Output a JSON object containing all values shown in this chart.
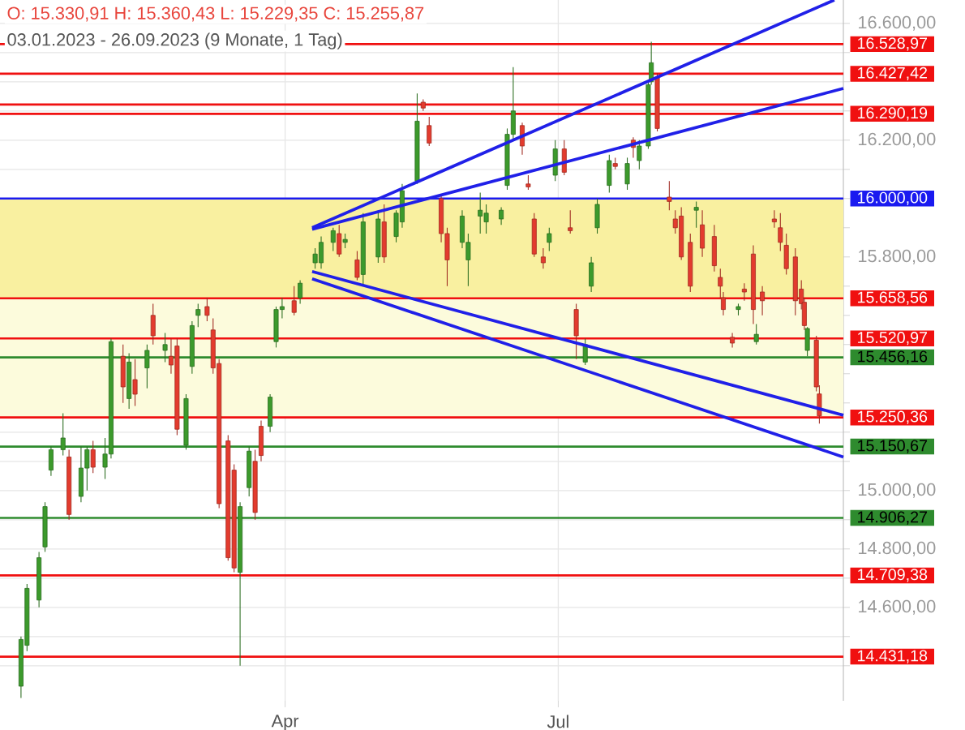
{
  "chart_data": {
    "type": "candlestick",
    "title": "O: 15.330,91  H: 15.360,43  L: 15.229,35  C: 15.255,87",
    "subtitle": "03.01.2023 - 26.09.2023  (9 Monate, 1 Tag)",
    "x": [
      "2023-01-03",
      "2023-01-05",
      "2023-01-09",
      "2023-01-11",
      "2023-01-13",
      "2023-01-17",
      "2023-01-19",
      "2023-01-23",
      "2023-01-25",
      "2023-01-27",
      "2023-01-31",
      "2023-02-02",
      "2023-02-06",
      "2023-02-08",
      "2023-02-10",
      "2023-02-14",
      "2023-02-16",
      "2023-02-20",
      "2023-02-22",
      "2023-02-24",
      "2023-02-27",
      "2023-03-01",
      "2023-03-03",
      "2023-03-06",
      "2023-03-08",
      "2023-03-10",
      "2023-03-13",
      "2023-03-15",
      "2023-03-17",
      "2023-03-20",
      "2023-03-22",
      "2023-03-24",
      "2023-03-27",
      "2023-03-29",
      "2023-03-31",
      "2023-04-04",
      "2023-04-06",
      "2023-04-11",
      "2023-04-13",
      "2023-04-17",
      "2023-04-19",
      "2023-04-21",
      "2023-04-25",
      "2023-04-27",
      "2023-05-02",
      "2023-05-04",
      "2023-05-08",
      "2023-05-10",
      "2023-05-15",
      "2023-05-17",
      "2023-05-19",
      "2023-05-23",
      "2023-05-25",
      "2023-05-30",
      "2023-06-01",
      "2023-06-05",
      "2023-06-07",
      "2023-06-12",
      "2023-06-14",
      "2023-06-16",
      "2023-06-19",
      "2023-06-21",
      "2023-06-23",
      "2023-06-26",
      "2023-06-28",
      "2023-06-30",
      "2023-07-03",
      "2023-07-05",
      "2023-07-07",
      "2023-07-10",
      "2023-07-12",
      "2023-07-14",
      "2023-07-18",
      "2023-07-20",
      "2023-07-24",
      "2023-07-26",
      "2023-07-28",
      "2023-07-31",
      "2023-08-01",
      "2023-08-03",
      "2023-08-07",
      "2023-08-09",
      "2023-08-11",
      "2023-08-14",
      "2023-08-16",
      "2023-08-18",
      "2023-08-22",
      "2023-08-24",
      "2023-08-25",
      "2023-08-28",
      "2023-08-30",
      "2023-09-01",
      "2023-09-04",
      "2023-09-05",
      "2023-09-07",
      "2023-09-11",
      "2023-09-13",
      "2023-09-15",
      "2023-09-18",
      "2023-09-20",
      "2023-09-21",
      "2023-09-22",
      "2023-09-25",
      "2023-09-26"
    ],
    "ohlc": [
      [
        14330,
        14500,
        14290,
        14490
      ],
      [
        14470,
        14680,
        14450,
        14665
      ],
      [
        14625,
        14790,
        14600,
        14770
      ],
      [
        14807,
        14960,
        14790,
        14945
      ],
      [
        15070,
        15150,
        15050,
        15140
      ],
      [
        15140,
        15265,
        15120,
        15180
      ],
      [
        15115,
        15140,
        14900,
        14918
      ],
      [
        14980,
        15150,
        14960,
        15077
      ],
      [
        15077,
        15150,
        15000,
        15140
      ],
      [
        15140,
        15170,
        15060,
        15080
      ],
      [
        15080,
        15180,
        15040,
        15125
      ],
      [
        15125,
        15520,
        15110,
        15510
      ],
      [
        15460,
        15500,
        15300,
        15355
      ],
      [
        15315,
        15470,
        15280,
        15440
      ],
      [
        15380,
        15450,
        15290,
        15330
      ],
      [
        15420,
        15500,
        15350,
        15480
      ],
      [
        15600,
        15640,
        15500,
        15530
      ],
      [
        15480,
        15540,
        15440,
        15500
      ],
      [
        15460,
        15520,
        15400,
        15430
      ],
      [
        15495,
        15520,
        15190,
        15210
      ],
      [
        15155,
        15330,
        15140,
        15315
      ],
      [
        15425,
        15580,
        15400,
        15565
      ],
      [
        15600,
        15640,
        15560,
        15620
      ],
      [
        15630,
        15660,
        15580,
        15600
      ],
      [
        15550,
        15590,
        15400,
        15420
      ],
      [
        15435,
        15450,
        14940,
        14955
      ],
      [
        15170,
        15190,
        14760,
        14770
      ],
      [
        15070,
        15090,
        14720,
        14735
      ],
      [
        14720,
        14960,
        14400,
        14945
      ],
      [
        15010,
        15150,
        14980,
        15135
      ],
      [
        15100,
        15140,
        14900,
        14925
      ],
      [
        15220,
        15240,
        15100,
        15120
      ],
      [
        15220,
        15330,
        15200,
        15320
      ],
      [
        15510,
        15630,
        15490,
        15620
      ],
      [
        15620,
        15660,
        15590,
        15630
      ],
      [
        15650,
        15700,
        15600,
        15610
      ],
      [
        15660,
        15720,
        15640,
        15710
      ],
      [
        15780,
        15830,
        15760,
        15810
      ],
      [
        15780,
        15870,
        15760,
        15850
      ],
      [
        15850,
        15900,
        15820,
        15890
      ],
      [
        15880,
        15910,
        15800,
        15810
      ],
      [
        15850,
        15880,
        15830,
        15860
      ],
      [
        15790,
        15820,
        15720,
        15730
      ],
      [
        15740,
        15950,
        15700,
        15920
      ],
      [
        15800,
        15960,
        15780,
        15930
      ],
      [
        15920,
        15980,
        15780,
        15800
      ],
      [
        15870,
        15960,
        15850,
        15950
      ],
      [
        15920,
        16050,
        15900,
        16027
      ],
      [
        16060,
        16360,
        16050,
        16265
      ],
      [
        16330,
        16340,
        16300,
        16310
      ],
      [
        16250,
        16280,
        16180,
        16190
      ],
      [
        16000,
        16010,
        15850,
        15880
      ],
      [
        15880,
        15900,
        15700,
        15790
      ],
      [
        15850,
        15960,
        15830,
        15940
      ],
      [
        15790,
        15880,
        15700,
        15850
      ],
      [
        15940,
        16020,
        15880,
        15960
      ],
      [
        15920,
        15980,
        15880,
        15950
      ],
      [
        15930,
        15970,
        15910,
        15960
      ],
      [
        16045,
        16240,
        16030,
        16220
      ],
      [
        16220,
        16450,
        16200,
        16300
      ],
      [
        16250,
        16260,
        16150,
        16180
      ],
      [
        16050,
        16080,
        16030,
        16040
      ],
      [
        15930,
        15950,
        15800,
        15810
      ],
      [
        15800,
        15830,
        15760,
        15780
      ],
      [
        15850,
        15900,
        15820,
        15880
      ],
      [
        16080,
        16200,
        16060,
        16170
      ],
      [
        16170,
        16200,
        16080,
        16090
      ],
      [
        15900,
        15960,
        15880,
        15890
      ],
      [
        15620,
        15640,
        15450,
        15530
      ],
      [
        15440,
        15520,
        15430,
        15500
      ],
      [
        15700,
        15800,
        15680,
        15780
      ],
      [
        15900,
        16000,
        15880,
        15980
      ],
      [
        16045,
        16150,
        16020,
        16130
      ],
      [
        16120,
        16140,
        16100,
        16110
      ],
      [
        16050,
        16140,
        16030,
        16120
      ],
      [
        16200,
        16210,
        16140,
        16175
      ],
      [
        16130,
        16200,
        16100,
        16180
      ],
      [
        16180,
        16400,
        16170,
        16390
      ],
      [
        16400,
        16537,
        16390,
        16465
      ],
      [
        16415,
        16430,
        16230,
        16240
      ],
      [
        16005,
        16060,
        15960,
        15990
      ],
      [
        15930,
        15960,
        15880,
        15900
      ],
      [
        15940,
        15970,
        15790,
        15800
      ],
      [
        15850,
        15880,
        15680,
        15700
      ],
      [
        15960,
        15990,
        15900,
        15970
      ],
      [
        15910,
        15960,
        15800,
        15830
      ],
      [
        15870,
        15910,
        15750,
        15770
      ],
      [
        15730,
        15760,
        15660,
        15700
      ],
      [
        15660,
        15680,
        15600,
        15620
      ],
      [
        15525,
        15540,
        15490,
        15505
      ],
      [
        15620,
        15640,
        15600,
        15630
      ],
      [
        15690,
        15710,
        15650,
        15680
      ],
      [
        15810,
        15840,
        15570,
        15620
      ],
      [
        15510,
        15570,
        15500,
        15535
      ],
      [
        15680,
        15700,
        15600,
        15650
      ],
      [
        15930,
        15960,
        15900,
        15920
      ],
      [
        15900,
        15950,
        15820,
        15850
      ],
      [
        15840,
        15880,
        15740,
        15760
      ],
      [
        15800,
        15830,
        15600,
        15650
      ],
      [
        15690,
        15720,
        15620,
        15640
      ],
      [
        15645,
        15660,
        15550,
        15565
      ],
      [
        15480,
        15560,
        15460,
        15555
      ],
      [
        15515,
        15530,
        15340,
        15355
      ],
      [
        15330.91,
        15360.43,
        15229.35,
        15255.87
      ]
    ],
    "colors": [
      "#3c9a2c",
      "#3c9a2c",
      "#3c9a2c",
      "#3c9a2c",
      "#3c9a2c",
      "#3c9a2c",
      "#e33b2e",
      "#3c9a2c",
      "#3c9a2c",
      "#e33b2e",
      "#3c9a2c",
      "#3c9a2c",
      "#e33b2e",
      "#3c9a2c",
      "#e33b2e",
      "#3c9a2c",
      "#e33b2e",
      "#3c9a2c",
      "#e33b2e",
      "#e33b2e",
      "#3c9a2c",
      "#3c9a2c",
      "#3c9a2c",
      "#e33b2e",
      "#e33b2e",
      "#e33b2e",
      "#e33b2e",
      "#e33b2e",
      "#3c9a2c",
      "#3c9a2c",
      "#e33b2e",
      "#e33b2e",
      "#3c9a2c",
      "#3c9a2c",
      "#3c9a2c",
      "#e33b2e",
      "#3c9a2c",
      "#3c9a2c",
      "#3c9a2c",
      "#3c9a2c",
      "#e33b2e",
      "#3c9a2c",
      "#e33b2e",
      "#3c9a2c",
      "#3c9a2c",
      "#e33b2e",
      "#3c9a2c",
      "#3c9a2c",
      "#3c9a2c",
      "#e33b2e",
      "#e33b2e",
      "#e33b2e",
      "#e33b2e",
      "#3c9a2c",
      "#3c9a2c",
      "#3c9a2c",
      "#3c9a2c",
      "#3c9a2c",
      "#3c9a2c",
      "#3c9a2c",
      "#e33b2e",
      "#e33b2e",
      "#e33b2e",
      "#e33b2e",
      "#3c9a2c",
      "#3c9a2c",
      "#e33b2e",
      "#e33b2e",
      "#e33b2e",
      "#3c9a2c",
      "#3c9a2c",
      "#3c9a2c",
      "#3c9a2c",
      "#e33b2e",
      "#3c9a2c",
      "#e33b2e",
      "#3c9a2c",
      "#3c9a2c",
      "#3c9a2c",
      "#e33b2e",
      "#e33b2e",
      "#e33b2e",
      "#e33b2e",
      "#e33b2e",
      "#3c9a2c",
      "#e33b2e",
      "#e33b2e",
      "#e33b2e",
      "#e33b2e",
      "#e33b2e",
      "#3c9a2c",
      "#e33b2e",
      "#e33b2e",
      "#3c9a2c",
      "#e33b2e",
      "#e33b2e",
      "#e33b2e",
      "#e33b2e",
      "#e33b2e",
      "#e33b2e",
      "#e33b2e",
      "#3c9a2c",
      "#e33b2e",
      "#e33b2e"
    ],
    "series": [
      {
        "type": "line",
        "color": "#2020e8",
        "x": [
          "2023-04-10",
          "2023-10-04"
        ],
        "values": [
          15895,
          16377
        ]
      },
      {
        "type": "line",
        "color": "#2020e8",
        "x": [
          "2023-04-10",
          "2023-10-04"
        ],
        "values": [
          15725,
          15115
        ]
      },
      {
        "type": "line",
        "color": "#2020e8",
        "x": [
          "2023-04-10",
          "2023-10-01"
        ],
        "values": [
          15900,
          16680
        ]
      },
      {
        "type": "line",
        "color": "#2020e8",
        "x": [
          "2023-04-10",
          "2023-10-04"
        ],
        "values": [
          15750,
          15258
        ]
      }
    ],
    "bands": [
      {
        "axis": "y",
        "from": 15250.36,
        "to": 15658.56,
        "color": "#fcfbdc"
      },
      {
        "axis": "y",
        "from": 15658.56,
        "to": 16000,
        "color": "#f9f0a0"
      }
    ],
    "ref_lines": [
      {
        "axis": "y",
        "value": 16528.97,
        "label": "16.528,97",
        "color": "#f01010"
      },
      {
        "axis": "y",
        "value": 16427.42,
        "label": "16.427,42",
        "color": "#f01010"
      },
      {
        "axis": "y",
        "value": 16321.84,
        "color": "#f01010"
      },
      {
        "axis": "y",
        "value": 16290.19,
        "label": "16.290,19",
        "color": "#f01010"
      },
      {
        "axis": "y",
        "value": 16000,
        "label": "16.000,00",
        "color": "#1a1af0"
      },
      {
        "axis": "y",
        "value": 15658.56,
        "label": "15.658,56",
        "color": "#f01010"
      },
      {
        "axis": "y",
        "value": 15520.97,
        "label": "15.520,97",
        "color": "#f01010"
      },
      {
        "axis": "y",
        "value": 15456.16,
        "label": "15.456,16",
        "color": "#2e8b2e"
      },
      {
        "axis": "y",
        "value": 15250.36,
        "label": "15.250,36",
        "color": "#f01010"
      },
      {
        "axis": "y",
        "value": 15150.67,
        "label": "15.150,67",
        "color": "#2e8b2e"
      },
      {
        "axis": "y",
        "value": 14906.27,
        "label": "14.906,27",
        "color": "#2e8b2e"
      },
      {
        "axis": "y",
        "value": 14709.38,
        "label": "14.709,38",
        "color": "#f01010"
      },
      {
        "axis": "y",
        "value": 14431.18,
        "label": "14.431,18",
        "color": "#f01010"
      }
    ],
    "xlim": [
      "2022-12-27",
      "2023-10-04"
    ],
    "xticks": [
      {
        "value": "2023-04-01",
        "label": "Apr"
      },
      {
        "value": "2023-07-01",
        "label": "Jul"
      }
    ],
    "ylim": [
      14280,
      16680
    ],
    "yticks": [
      {
        "value": 14400,
        "label": null
      },
      {
        "value": 14500,
        "label": null
      },
      {
        "value": 14600,
        "label": "14.600,00"
      },
      {
        "value": 14700,
        "label": null
      },
      {
        "value": 14800,
        "label": "14.800,00"
      },
      {
        "value": 14900,
        "label": null
      },
      {
        "value": 15000,
        "label": "15.000,00"
      },
      {
        "value": 15100,
        "label": null
      },
      {
        "value": 15200,
        "label": null
      },
      {
        "value": 15300,
        "label": null
      },
      {
        "value": 15400,
        "label": null
      },
      {
        "value": 15500,
        "label": null
      },
      {
        "value": 15600,
        "label": null
      },
      {
        "value": 15700,
        "label": null
      },
      {
        "value": 15800,
        "label": "15.800,00"
      },
      {
        "value": 15900,
        "label": null
      },
      {
        "value": 16000,
        "label": null
      },
      {
        "value": 16100,
        "label": null
      },
      {
        "value": 16200,
        "label": "16.200,00"
      },
      {
        "value": 16300,
        "label": null
      },
      {
        "value": 16400,
        "label": null
      },
      {
        "value": 16500,
        "label": null
      },
      {
        "value": 16600,
        "label": "16.600,00"
      }
    ],
    "grid": true
  }
}
